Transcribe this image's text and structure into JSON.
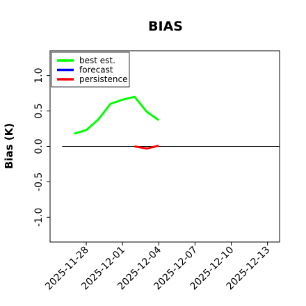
{
  "chart_data": {
    "type": "line",
    "title": "BIAS",
    "xlabel": "",
    "ylabel": "Bias (K)",
    "ylim": [
      -1.35,
      1.35
    ],
    "xlim": [
      "2025-11-25",
      "2025-12-14"
    ],
    "yticks": [
      {
        "value": -1.0,
        "label": "-1.0"
      },
      {
        "value": -0.5,
        "label": "-0.5"
      },
      {
        "value": 0.0,
        "label": "0.0"
      },
      {
        "value": 0.5,
        "label": "0.5"
      },
      {
        "value": 1.0,
        "label": "1.0"
      }
    ],
    "xticks": [
      {
        "date": "2025-11-28",
        "label": "2025-11-28",
        "color": "#000000"
      },
      {
        "date": "2025-12-01",
        "label": "2025-12-01",
        "color": "#000000"
      },
      {
        "date": "2025-12-04",
        "label": "2025-12-04",
        "color": "#228b22"
      },
      {
        "date": "2025-12-07",
        "label": "2025-12-07",
        "color": "#000000"
      },
      {
        "date": "2025-12-10",
        "label": "2025-12-10",
        "color": "#000000"
      },
      {
        "date": "2025-12-13",
        "label": "2025-12-13",
        "color": "#000000"
      }
    ],
    "reference_line": {
      "y": 0.0,
      "x_start": "2025-11-26",
      "x_end": "2025-12-14",
      "color": "#000000"
    },
    "legend_position": "top-left",
    "grid": false,
    "series": [
      {
        "name": "best est.",
        "color": "#00ff00",
        "points": [
          {
            "x": "2025-11-27",
            "y": 0.18
          },
          {
            "x": "2025-11-28",
            "y": 0.23
          },
          {
            "x": "2025-11-29",
            "y": 0.38
          },
          {
            "x": "2025-11-30",
            "y": 0.6
          },
          {
            "x": "2025-12-01",
            "y": 0.66
          },
          {
            "x": "2025-12-02",
            "y": 0.7
          },
          {
            "x": "2025-12-03",
            "y": 0.49
          },
          {
            "x": "2025-12-04",
            "y": 0.37
          }
        ]
      },
      {
        "name": "forecast",
        "color": "#0000ff",
        "points": []
      },
      {
        "name": "persistence",
        "color": "#ff0000",
        "points": [
          {
            "x": "2025-12-02",
            "y": 0.0
          },
          {
            "x": "2025-12-03",
            "y": -0.03
          },
          {
            "x": "2025-12-04",
            "y": 0.01
          }
        ]
      }
    ]
  }
}
